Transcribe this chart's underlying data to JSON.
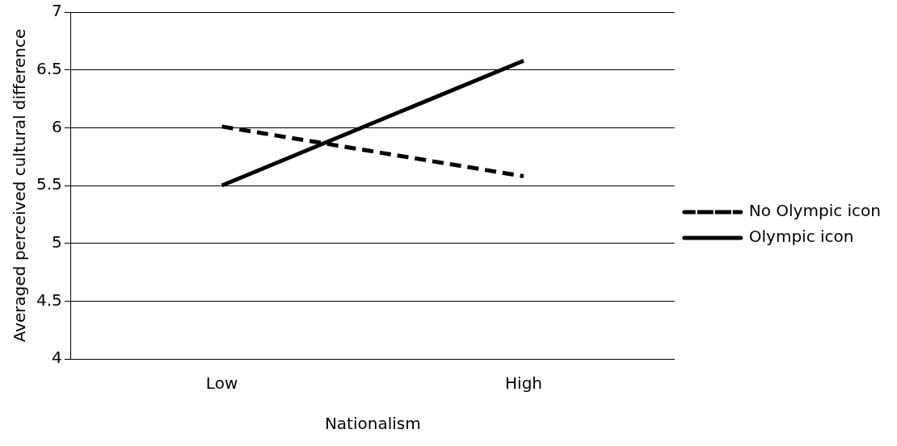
{
  "chart_data": {
    "type": "line",
    "xlabel": "Nationalism",
    "ylabel": "Averaged perceived cultural difference",
    "categories": [
      "Low",
      "High"
    ],
    "series": [
      {
        "name": "No Olympic icon",
        "color": "#000000",
        "values": [
          6.01,
          5.58
        ],
        "line_style": "dashed"
      },
      {
        "name": "Olympic icon",
        "color": "#000000",
        "values": [
          5.5,
          6.58
        ],
        "line_style": "solid"
      }
    ],
    "ylim": [
      4,
      7
    ],
    "yticks": [
      4,
      4.5,
      5,
      5.5,
      6,
      6.5,
      7
    ],
    "grid": "y",
    "legend": "right",
    "marker": "none"
  }
}
